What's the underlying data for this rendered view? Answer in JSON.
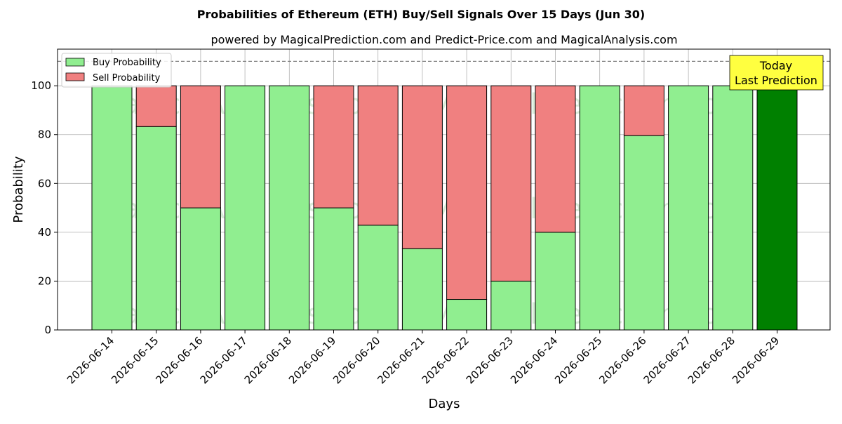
{
  "chart_data": {
    "type": "bar",
    "stacked": true,
    "title": "Probabilities of Ethereum (ETH) Buy/Sell Signals Over 15 Days (Jun 30)",
    "subtitle": "powered by MagicalPrediction.com and Predict-Price.com and MagicalAnalysis.com",
    "xlabel": "Days",
    "ylabel": "Probability",
    "ylim": [
      0,
      115
    ],
    "yticks": [
      0,
      20,
      40,
      60,
      80,
      100
    ],
    "grid": true,
    "legend_position": "top-left",
    "reference_line": 110,
    "categories": [
      "2026-06-14",
      "2026-06-15",
      "2026-06-16",
      "2026-06-17",
      "2026-06-18",
      "2026-06-19",
      "2026-06-20",
      "2026-06-21",
      "2026-06-22",
      "2026-06-23",
      "2026-06-24",
      "2026-06-25",
      "2026-06-26",
      "2026-06-27",
      "2026-06-28",
      "2026-06-29"
    ],
    "series": [
      {
        "name": "Buy Probability",
        "color": "#90ee90",
        "values": [
          100,
          83.3,
          50,
          100,
          100,
          50,
          42.9,
          33.3,
          12.5,
          20,
          40,
          100,
          79.6,
          100,
          100,
          100
        ]
      },
      {
        "name": "Sell Probability",
        "color": "#f08080",
        "values": [
          0,
          16.7,
          50,
          0,
          0,
          50,
          57.1,
          66.7,
          87.5,
          80,
          60,
          0,
          20.4,
          0,
          0,
          0
        ]
      }
    ],
    "highlight": {
      "index": 15,
      "color": "#008000"
    },
    "annotation": {
      "text_line1": "Today",
      "text_line2": "Last Prediction"
    },
    "watermarks": [
      "MagicalAnalysis.com",
      "MagicalPrediction.com"
    ]
  }
}
